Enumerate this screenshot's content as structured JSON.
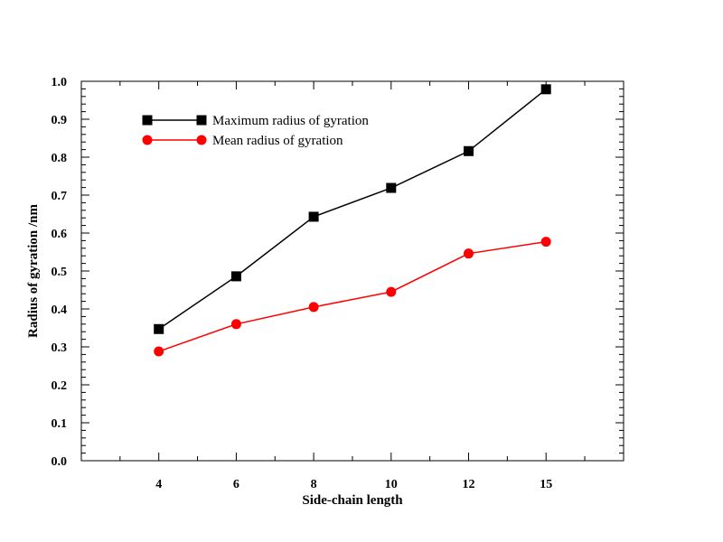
{
  "chart_data": {
    "type": "line",
    "categories": [
      "4",
      "6",
      "8",
      "10",
      "12",
      "15"
    ],
    "series": [
      {
        "name": "Maximum radius of gyration",
        "values": [
          0.347,
          0.486,
          0.643,
          0.719,
          0.816,
          0.979
        ],
        "color": "#000000",
        "marker": "square"
      },
      {
        "name": "Mean radius of gyration",
        "values": [
          0.288,
          0.36,
          0.405,
          0.445,
          0.546,
          0.577
        ],
        "color": "#ff0000",
        "marker": "circle"
      }
    ],
    "xlabel": "Side-chain length",
    "ylabel": "Radius of gyration /nm",
    "ylim": [
      0.0,
      1.0
    ],
    "yticks": [
      "0.0",
      "0.1",
      "0.2",
      "0.3",
      "0.4",
      "0.5",
      "0.6",
      "0.7",
      "0.8",
      "0.9",
      "1.0"
    ],
    "legend_position": "top-left",
    "grid": false
  }
}
